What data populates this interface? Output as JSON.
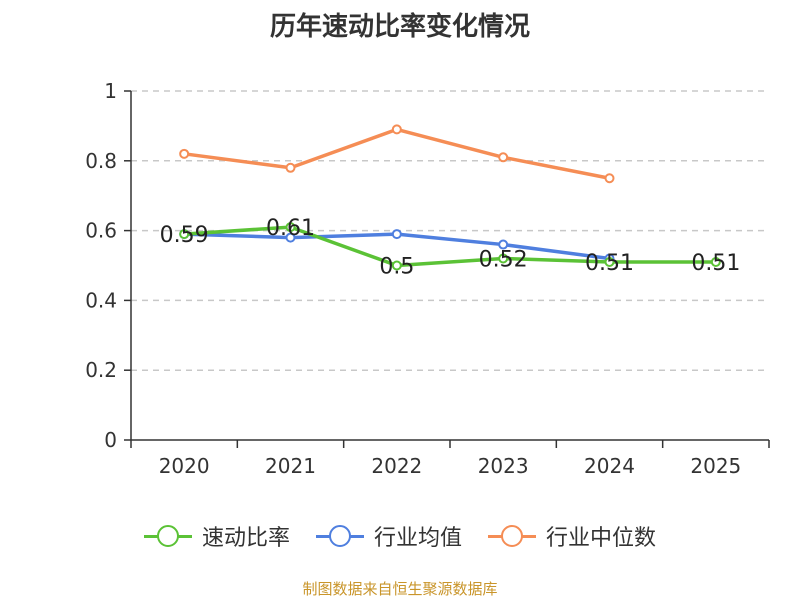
{
  "chart_data": {
    "type": "line",
    "title": "历年速动比率变化情况",
    "categories": [
      "2020",
      "2021",
      "2022",
      "2023",
      "2024",
      "2025"
    ],
    "ylim": [
      0,
      1
    ],
    "yticks": [
      0,
      0.2,
      0.4,
      0.6,
      0.8,
      1
    ],
    "ytick_labels": [
      "0",
      "0.2",
      "0.4",
      "0.6",
      "0.8",
      "1"
    ],
    "grid": true,
    "legend_position": "bottom-center",
    "series": [
      {
        "name": "速动比率",
        "color": "#5bc236",
        "values": [
          0.59,
          0.61,
          0.5,
          0.52,
          0.51,
          0.51
        ],
        "labels": [
          "0.59",
          "0.61",
          "0.5",
          "0.52",
          "0.51",
          "0.51"
        ]
      },
      {
        "name": "行业均值",
        "color": "#4f7fdf",
        "values": [
          0.59,
          0.58,
          0.59,
          0.56,
          0.52,
          null
        ]
      },
      {
        "name": "行业中位数",
        "color": "#f58d55",
        "values": [
          0.82,
          0.78,
          0.89,
          0.81,
          0.75,
          null
        ]
      }
    ]
  },
  "source": "制图数据来自恒生聚源数据库"
}
